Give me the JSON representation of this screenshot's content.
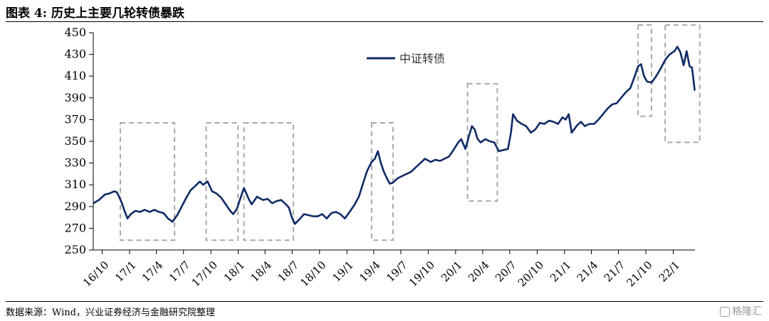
{
  "figure": {
    "title": "图表 4:  历史上主要几轮转债暴跌",
    "source": "数据来源：Wind，兴业证券经济与金融研究院整理",
    "watermark": "格隆汇"
  },
  "chart_data": {
    "type": "line",
    "title": "",
    "xlabel": "",
    "ylabel": "",
    "ylim": [
      250,
      450
    ],
    "yticks": [
      250,
      270,
      290,
      310,
      330,
      350,
      370,
      390,
      410,
      430,
      450
    ],
    "xticks": [
      "16/10",
      "17/1",
      "17/4",
      "17/7",
      "17/10",
      "18/1",
      "18/4",
      "18/7",
      "18/10",
      "19/1",
      "19/4",
      "19/7",
      "19/10",
      "20/1",
      "20/4",
      "20/7",
      "20/10",
      "21/1",
      "21/4",
      "21/7",
      "21/10",
      "22/1"
    ],
    "x_start": "2016-09-01",
    "x_end": "2022-03-15",
    "legend": {
      "position": "top-center"
    },
    "series": [
      {
        "name": "中证转债",
        "color": "#0f2a66",
        "points": [
          [
            "2016-09-01",
            293
          ],
          [
            "2016-09-20",
            296
          ],
          [
            "2016-10-10",
            301
          ],
          [
            "2016-10-25",
            302
          ],
          [
            "2016-11-10",
            304
          ],
          [
            "2016-11-20",
            303
          ],
          [
            "2016-12-05",
            294
          ],
          [
            "2016-12-15",
            286
          ],
          [
            "2016-12-25",
            279
          ],
          [
            "2017-01-05",
            283
          ],
          [
            "2017-01-20",
            286
          ],
          [
            "2017-02-05",
            285
          ],
          [
            "2017-02-20",
            287
          ],
          [
            "2017-03-10",
            285
          ],
          [
            "2017-03-25",
            287
          ],
          [
            "2017-04-10",
            285
          ],
          [
            "2017-04-25",
            284
          ],
          [
            "2017-05-10",
            279
          ],
          [
            "2017-05-25",
            276
          ],
          [
            "2017-06-10",
            282
          ],
          [
            "2017-06-25",
            290
          ],
          [
            "2017-07-10",
            298
          ],
          [
            "2017-07-25",
            305
          ],
          [
            "2017-08-10",
            309
          ],
          [
            "2017-08-25",
            313
          ],
          [
            "2017-09-05",
            310
          ],
          [
            "2017-09-20",
            313
          ],
          [
            "2017-10-05",
            304
          ],
          [
            "2017-10-20",
            302
          ],
          [
            "2017-11-05",
            298
          ],
          [
            "2017-11-20",
            292
          ],
          [
            "2017-12-05",
            286
          ],
          [
            "2017-12-15",
            283
          ],
          [
            "2017-12-28",
            288
          ],
          [
            "2018-01-05",
            295
          ],
          [
            "2018-01-20",
            307
          ],
          [
            "2018-02-05",
            297
          ],
          [
            "2018-02-15",
            292
          ],
          [
            "2018-03-05",
            299
          ],
          [
            "2018-03-25",
            296
          ],
          [
            "2018-04-10",
            297
          ],
          [
            "2018-04-25",
            293
          ],
          [
            "2018-05-10",
            295
          ],
          [
            "2018-05-25",
            296
          ],
          [
            "2018-06-10",
            292
          ],
          [
            "2018-06-20",
            289
          ],
          [
            "2018-06-30",
            280
          ],
          [
            "2018-07-10",
            274
          ],
          [
            "2018-07-25",
            278
          ],
          [
            "2018-08-10",
            283
          ],
          [
            "2018-08-25",
            282
          ],
          [
            "2018-09-10",
            281
          ],
          [
            "2018-09-25",
            281
          ],
          [
            "2018-10-10",
            283
          ],
          [
            "2018-10-25",
            279
          ],
          [
            "2018-11-10",
            284
          ],
          [
            "2018-11-25",
            285
          ],
          [
            "2018-12-10",
            283
          ],
          [
            "2018-12-25",
            279
          ],
          [
            "2019-01-10",
            285
          ],
          [
            "2019-01-25",
            291
          ],
          [
            "2019-02-10",
            299
          ],
          [
            "2019-02-25",
            312
          ],
          [
            "2019-03-10",
            323
          ],
          [
            "2019-03-25",
            331
          ],
          [
            "2019-04-05",
            334
          ],
          [
            "2019-04-15",
            341
          ],
          [
            "2019-04-25",
            330
          ],
          [
            "2019-05-05",
            322
          ],
          [
            "2019-05-15",
            316
          ],
          [
            "2019-05-25",
            311
          ],
          [
            "2019-06-05",
            312
          ],
          [
            "2019-06-20",
            316
          ],
          [
            "2019-07-05",
            318
          ],
          [
            "2019-07-20",
            320
          ],
          [
            "2019-08-05",
            322
          ],
          [
            "2019-08-20",
            326
          ],
          [
            "2019-09-05",
            330
          ],
          [
            "2019-09-20",
            334
          ],
          [
            "2019-10-10",
            331
          ],
          [
            "2019-10-25",
            333
          ],
          [
            "2019-11-10",
            332
          ],
          [
            "2019-11-25",
            334
          ],
          [
            "2019-12-10",
            336
          ],
          [
            "2019-12-25",
            342
          ],
          [
            "2020-01-10",
            349
          ],
          [
            "2020-01-20",
            352
          ],
          [
            "2020-02-03",
            343
          ],
          [
            "2020-02-15",
            355
          ],
          [
            "2020-02-25",
            364
          ],
          [
            "2020-03-05",
            361
          ],
          [
            "2020-03-15",
            352
          ],
          [
            "2020-03-25",
            349
          ],
          [
            "2020-04-10",
            352
          ],
          [
            "2020-04-25",
            350
          ],
          [
            "2020-05-10",
            349
          ],
          [
            "2020-05-25",
            341
          ],
          [
            "2020-06-10",
            342
          ],
          [
            "2020-06-25",
            343
          ],
          [
            "2020-07-05",
            358
          ],
          [
            "2020-07-12",
            375
          ],
          [
            "2020-07-25",
            369
          ],
          [
            "2020-08-10",
            366
          ],
          [
            "2020-08-25",
            364
          ],
          [
            "2020-09-10",
            358
          ],
          [
            "2020-09-25",
            361
          ],
          [
            "2020-10-10",
            367
          ],
          [
            "2020-10-25",
            366
          ],
          [
            "2020-11-10",
            369
          ],
          [
            "2020-11-25",
            368
          ],
          [
            "2020-12-10",
            366
          ],
          [
            "2020-12-25",
            372
          ],
          [
            "2021-01-05",
            370
          ],
          [
            "2021-01-15",
            375
          ],
          [
            "2021-01-25",
            358
          ],
          [
            "2021-02-10",
            364
          ],
          [
            "2021-02-25",
            368
          ],
          [
            "2021-03-10",
            364
          ],
          [
            "2021-03-25",
            366
          ],
          [
            "2021-04-10",
            366
          ],
          [
            "2021-04-25",
            370
          ],
          [
            "2021-05-10",
            375
          ],
          [
            "2021-05-25",
            380
          ],
          [
            "2021-06-10",
            384
          ],
          [
            "2021-06-25",
            385
          ],
          [
            "2021-07-10",
            390
          ],
          [
            "2021-07-25",
            395
          ],
          [
            "2021-08-10",
            399
          ],
          [
            "2021-08-25",
            410
          ],
          [
            "2021-09-05",
            419
          ],
          [
            "2021-09-15",
            421
          ],
          [
            "2021-09-25",
            410
          ],
          [
            "2021-10-05",
            405
          ],
          [
            "2021-10-20",
            404
          ],
          [
            "2021-11-05",
            410
          ],
          [
            "2021-11-20",
            417
          ],
          [
            "2021-12-05",
            425
          ],
          [
            "2021-12-20",
            430
          ],
          [
            "2022-01-05",
            433
          ],
          [
            "2022-01-15",
            437
          ],
          [
            "2022-01-25",
            432
          ],
          [
            "2022-02-05",
            420
          ],
          [
            "2022-02-15",
            433
          ],
          [
            "2022-02-25",
            419
          ],
          [
            "2022-03-05",
            418
          ],
          [
            "2022-03-10",
            407
          ],
          [
            "2022-03-14",
            397
          ]
        ]
      }
    ],
    "annotations": [
      {
        "type": "dashed-box",
        "x0": "2016-12-01",
        "x1": "2017-06-01",
        "y0": 259,
        "y1": 367
      },
      {
        "type": "dashed-box",
        "x0": "2017-09-15",
        "x1": "2017-12-31",
        "y0": 259,
        "y1": 367
      },
      {
        "type": "dashed-box",
        "x0": "2018-01-20",
        "x1": "2018-07-05",
        "y0": 259,
        "y1": 367
      },
      {
        "type": "dashed-box",
        "x0": "2019-03-25",
        "x1": "2019-06-05",
        "y0": 259,
        "y1": 367
      },
      {
        "type": "dashed-box",
        "x0": "2020-02-10",
        "x1": "2020-05-20",
        "y0": 295,
        "y1": 403
      },
      {
        "type": "dashed-box",
        "x0": "2021-09-05",
        "x1": "2021-10-20",
        "y0": 373,
        "y1": 457
      },
      {
        "type": "dashed-box",
        "x0": "2021-12-05",
        "x1": "2022-03-31",
        "y0": 349,
        "y1": 457
      }
    ]
  }
}
